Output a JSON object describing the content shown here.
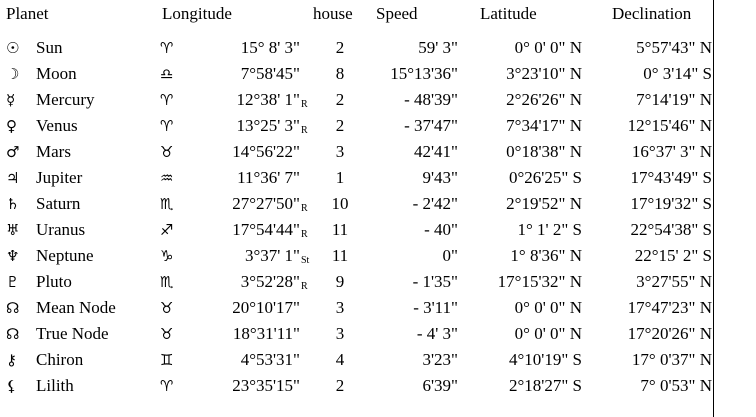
{
  "header": {
    "planet": "Planet",
    "longitude": "Longitude",
    "house": "house",
    "speed": "Speed",
    "latitude": "Latitude",
    "declination": "Declination"
  },
  "rows": [
    {
      "symbol": "☉",
      "name": "Sun",
      "sign": "♈",
      "longitude": "15° 8' 3\"",
      "house": 2,
      "speed": "59' 3\"",
      "latitude": "0° 0' 0\" N",
      "declination": "5°57'43\" N"
    },
    {
      "symbol": "☽",
      "name": "Moon",
      "sign": "♎",
      "longitude": "7°58'45\"",
      "house": 8,
      "speed": "15°13'36\"",
      "latitude": "3°23'10\" N",
      "declination": "0° 3'14\" S"
    },
    {
      "symbol": "☿",
      "name": "Mercury",
      "sign": "♈",
      "longitude": "12°38' 1\"",
      "motion": "R",
      "house": 2,
      "speed": "- 48'39\"",
      "latitude": "2°26'26\" N",
      "declination": "7°14'19\" N"
    },
    {
      "symbol": "♀",
      "name": "Venus",
      "sign": "♈",
      "longitude": "13°25' 3\"",
      "motion": "R",
      "house": 2,
      "speed": "- 37'47\"",
      "latitude": "7°34'17\" N",
      "declination": "12°15'46\" N"
    },
    {
      "symbol": "♂",
      "name": "Mars",
      "sign": "♉",
      "longitude": "14°56'22\"",
      "house": 3,
      "speed": "42'41\"",
      "latitude": "0°18'38\" N",
      "declination": "16°37' 3\" N"
    },
    {
      "symbol": "♃",
      "name": "Jupiter",
      "sign": "♒",
      "longitude": "11°36' 7\"",
      "house": 1,
      "speed": "9'43\"",
      "latitude": "0°26'25\" S",
      "declination": "17°43'49\" S"
    },
    {
      "symbol": "♄",
      "name": "Saturn",
      "sign": "♏",
      "longitude": "27°27'50\"",
      "motion": "R",
      "house": 10,
      "speed": "- 2'42\"",
      "latitude": "2°19'52\" N",
      "declination": "17°19'32\" S"
    },
    {
      "symbol": "♅",
      "name": "Uranus",
      "sign": "♐",
      "longitude": "17°54'44\"",
      "motion": "R",
      "house": 11,
      "speed": "- 40\"",
      "latitude": "1° 1' 2\" S",
      "declination": "22°54'38\" S"
    },
    {
      "symbol": "♆",
      "name": "Neptune",
      "sign": "♑",
      "longitude": "3°37' 1\"",
      "motion": "St",
      "house": 11,
      "speed": "0\"",
      "latitude": "1° 8'36\" N",
      "declination": "22°15' 2\" S"
    },
    {
      "symbol": "♇",
      "name": "Pluto",
      "sign": "♏",
      "longitude": "3°52'28\"",
      "motion": "R",
      "house": 9,
      "speed": "- 1'35\"",
      "latitude": "17°15'32\" N",
      "declination": "3°27'55\" N"
    },
    {
      "symbol": "☊",
      "name": "Mean Node",
      "sign": "♉",
      "longitude": "20°10'17\"",
      "house": 3,
      "speed": "- 3'11\"",
      "latitude": "0° 0' 0\" N",
      "declination": "17°47'23\" N"
    },
    {
      "symbol": "☊",
      "name": "True Node",
      "sign": "♉",
      "longitude": "18°31'11\"",
      "house": 3,
      "speed": "- 4' 3\"",
      "latitude": "0° 0' 0\" N",
      "declination": "17°20'26\" N"
    },
    {
      "symbol": "⚷",
      "name": "Chiron",
      "sign": "♊",
      "longitude": "4°53'31\"",
      "house": 4,
      "speed": "3'23\"",
      "latitude": "4°10'19\" S",
      "declination": "17° 0'37\" N"
    },
    {
      "symbol": "⚸",
      "name": "Lilith",
      "sign": "♈",
      "longitude": "23°35'15\"",
      "house": 2,
      "speed": "6'39\"",
      "latitude": "2°18'27\" S",
      "declination": "7° 0'53\" N"
    }
  ]
}
